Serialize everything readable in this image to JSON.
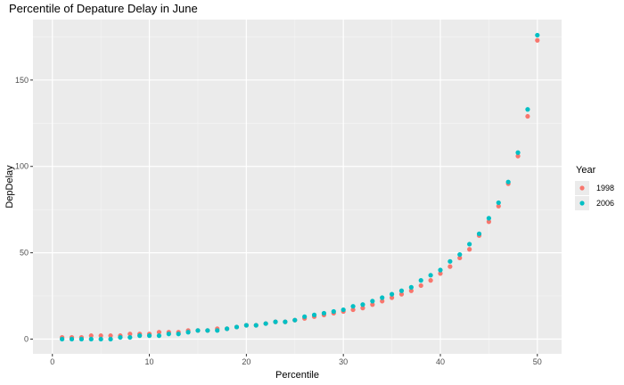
{
  "chart_data": {
    "type": "scatter",
    "title": "Percentile of Depature Delay in June",
    "xlabel": "Percentile",
    "ylabel": "DepDelay",
    "xlim": [
      -2,
      52.5
    ],
    "ylim": [
      -8.5,
      185
    ],
    "xticks": [
      0,
      10,
      20,
      30,
      40,
      50
    ],
    "yticks": [
      0,
      50,
      100,
      150
    ],
    "grid": true,
    "legend": {
      "title": "Year",
      "placement": "right"
    },
    "series": [
      {
        "name": "1998",
        "color": "#F8766D",
        "x": [
          1,
          2,
          3,
          4,
          5,
          6,
          7,
          8,
          9,
          10,
          11,
          12,
          13,
          14,
          15,
          16,
          17,
          18,
          19,
          20,
          21,
          22,
          23,
          24,
          25,
          26,
          27,
          28,
          29,
          30,
          31,
          32,
          33,
          34,
          35,
          36,
          37,
          38,
          39,
          40,
          41,
          42,
          43,
          44,
          45,
          46,
          47,
          48,
          49,
          50
        ],
        "y": [
          1,
          1,
          1,
          2,
          2,
          2,
          2,
          3,
          3,
          3,
          4,
          4,
          4,
          5,
          5,
          5,
          6,
          6,
          7,
          8,
          8,
          9,
          10,
          10,
          11,
          12,
          13,
          14,
          15,
          16,
          17,
          18,
          20,
          22,
          24,
          26,
          28,
          31,
          34,
          38,
          42,
          47,
          52,
          60,
          68,
          77,
          90,
          106,
          129,
          173
        ]
      },
      {
        "name": "2006",
        "color": "#00BFC4",
        "x": [
          1,
          2,
          3,
          4,
          5,
          6,
          7,
          8,
          9,
          10,
          11,
          12,
          13,
          14,
          15,
          16,
          17,
          18,
          19,
          20,
          21,
          22,
          23,
          24,
          25,
          26,
          27,
          28,
          29,
          30,
          31,
          32,
          33,
          34,
          35,
          36,
          37,
          38,
          39,
          40,
          41,
          42,
          43,
          44,
          45,
          46,
          47,
          48,
          49,
          50
        ],
        "y": [
          0,
          0,
          0,
          0,
          0,
          0,
          1,
          1,
          2,
          2,
          2,
          3,
          3,
          4,
          5,
          5,
          5,
          6,
          7,
          8,
          8,
          9,
          10,
          10,
          11,
          13,
          14,
          15,
          16,
          17,
          19,
          20,
          22,
          24,
          26,
          28,
          30,
          34,
          37,
          40,
          45,
          49,
          55,
          61,
          70,
          79,
          91,
          108,
          133,
          176
        ]
      }
    ]
  }
}
